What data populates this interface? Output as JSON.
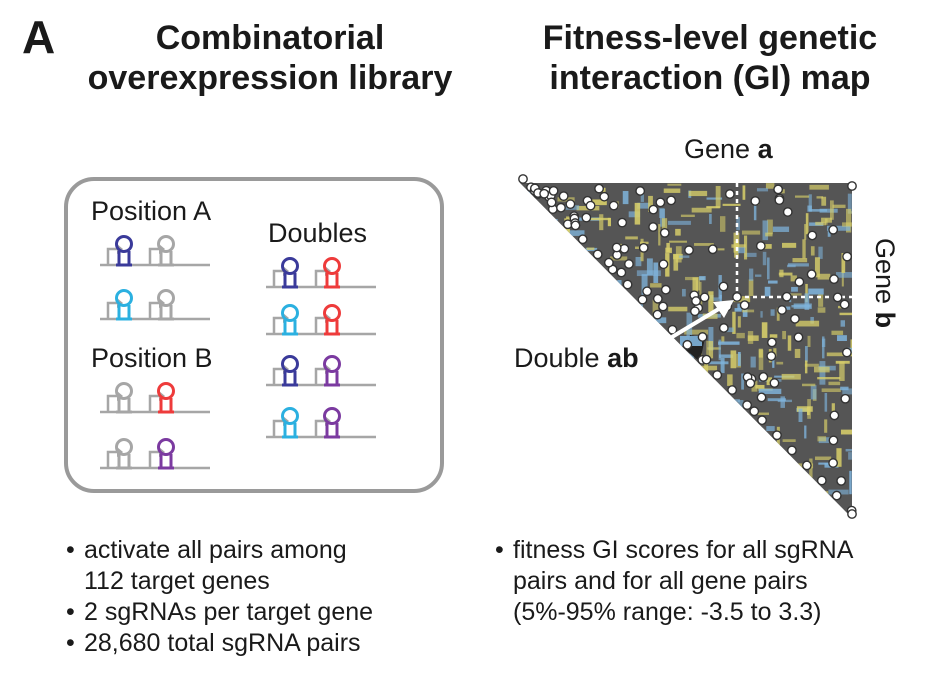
{
  "panel_label": "A",
  "left": {
    "title_line1": "Combinatorial",
    "title_line2": "overexpression library",
    "position_a": "Position A",
    "position_b": "Position B",
    "doubles": "Doubles",
    "bullets": [
      {
        "line1": "activate all pairs among",
        "line2": "112 target genes"
      },
      {
        "line1": "2 sgRNAs per target gene",
        "line2": ""
      },
      {
        "line1": "28,680 total sgRNA pairs",
        "line2": ""
      }
    ]
  },
  "right": {
    "title_line1": "Fitness-level genetic",
    "title_line2": "interaction (GI) map",
    "gene_a_prefix": "Gene ",
    "gene_a_bold": "a",
    "gene_b_prefix": "Gene ",
    "gene_b_bold": "b",
    "double_prefix": "Double ",
    "double_bold": "ab",
    "bullets": [
      {
        "line1": "fitness GI scores for all sgRNA",
        "line2": "pairs and for all gene pairs",
        "line3": "(5%-95% range: -3.5 to 3.3)"
      }
    ]
  },
  "colors": {
    "gray": "#a6a6a6",
    "dark_blue": "#3a3a9a",
    "light_blue": "#2bb0e0",
    "red": "#ee3b3b",
    "purple": "#7b3aa0",
    "map_dark": "#555555",
    "map_yellow": "#d8cf6a",
    "map_blue": "#7fb4dc"
  }
}
